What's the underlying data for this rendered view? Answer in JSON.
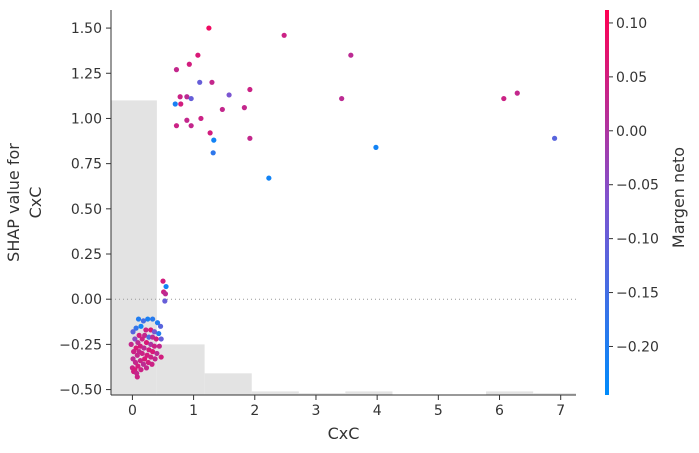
{
  "chart_data": {
    "type": "scatter",
    "xlabel": "CxC",
    "ylabel": "SHAP value for\nCxC",
    "colorbar_label": "Margen neto",
    "xlim": [
      -0.35,
      7.25
    ],
    "ylim": [
      -0.53,
      1.6
    ],
    "x_ticks": [
      0,
      1,
      2,
      3,
      4,
      5,
      6,
      7
    ],
    "y_ticks": [
      -0.5,
      -0.25,
      0.0,
      0.25,
      0.5,
      0.75,
      1.0,
      1.25,
      1.5
    ],
    "y_tick_labels": [
      "−0.50",
      "−0.25",
      "0.00",
      "0.25",
      "0.50",
      "0.75",
      "1.00",
      "1.25",
      "1.50"
    ],
    "colorbar": {
      "min": -0.245,
      "max": 0.112,
      "ticks": [
        0.1,
        0.05,
        0.0,
        -0.05,
        -0.1,
        -0.15,
        -0.2
      ],
      "tick_labels": [
        "0.10",
        "0.05",
        "0.00",
        "−0.05",
        "−0.10",
        "−0.15",
        "−0.20"
      ],
      "low_color": "#008bfb",
      "mid_color": "#7d54d0",
      "high_color": "#ff0052"
    },
    "histogram": {
      "color": "#e3e3e3",
      "bins": [
        {
          "x0": -0.35,
          "x1": 0.4,
          "height": 1.63
        },
        {
          "x0": 0.4,
          "x1": 1.18,
          "height": 0.28
        },
        {
          "x0": 1.18,
          "x1": 1.95,
          "height": 0.12
        },
        {
          "x0": 1.95,
          "x1": 2.72,
          "height": 0.02
        },
        {
          "x0": 2.72,
          "x1": 3.48,
          "height": 0.01
        },
        {
          "x0": 3.48,
          "x1": 4.25,
          "height": 0.02
        },
        {
          "x0": 4.25,
          "x1": 5.02,
          "height": 0.0
        },
        {
          "x0": 5.02,
          "x1": 5.78,
          "height": 0.0
        },
        {
          "x0": 5.78,
          "x1": 6.55,
          "height": 0.02
        },
        {
          "x0": 6.55,
          "x1": 7.25,
          "height": 0.01
        }
      ]
    },
    "points": [
      {
        "x": 1.25,
        "y": 1.5,
        "c": 0.09
      },
      {
        "x": 2.48,
        "y": 1.46,
        "c": 0.04
      },
      {
        "x": 3.57,
        "y": 1.35,
        "c": 0.02
      },
      {
        "x": 1.07,
        "y": 1.35,
        "c": 0.06
      },
      {
        "x": 0.93,
        "y": 1.3,
        "c": 0.05
      },
      {
        "x": 0.72,
        "y": 1.27,
        "c": 0.03
      },
      {
        "x": 1.1,
        "y": 1.2,
        "c": -0.1
      },
      {
        "x": 1.3,
        "y": 1.2,
        "c": 0.03
      },
      {
        "x": 1.92,
        "y": 1.16,
        "c": 0.04
      },
      {
        "x": 1.58,
        "y": 1.13,
        "c": -0.07
      },
      {
        "x": 0.78,
        "y": 1.12,
        "c": 0.04
      },
      {
        "x": 0.89,
        "y": 1.12,
        "c": 0.02
      },
      {
        "x": 0.96,
        "y": 1.11,
        "c": -0.1
      },
      {
        "x": 3.42,
        "y": 1.11,
        "c": 0.02
      },
      {
        "x": 6.07,
        "y": 1.11,
        "c": 0.04
      },
      {
        "x": 6.29,
        "y": 1.14,
        "c": 0.03
      },
      {
        "x": 0.7,
        "y": 1.08,
        "c": -0.21
      },
      {
        "x": 0.79,
        "y": 1.08,
        "c": 0.05
      },
      {
        "x": 1.47,
        "y": 1.05,
        "c": 0.03
      },
      {
        "x": 1.83,
        "y": 1.06,
        "c": 0.03
      },
      {
        "x": 1.12,
        "y": 1.0,
        "c": 0.04
      },
      {
        "x": 0.89,
        "y": 0.99,
        "c": 0.03
      },
      {
        "x": 0.72,
        "y": 0.96,
        "c": 0.04
      },
      {
        "x": 0.96,
        "y": 0.96,
        "c": 0.03
      },
      {
        "x": 1.27,
        "y": 0.92,
        "c": 0.05
      },
      {
        "x": 1.92,
        "y": 0.89,
        "c": 0.03
      },
      {
        "x": 1.33,
        "y": 0.88,
        "c": -0.22
      },
      {
        "x": 1.32,
        "y": 0.81,
        "c": -0.18
      },
      {
        "x": 3.98,
        "y": 0.84,
        "c": -0.22
      },
      {
        "x": 6.9,
        "y": 0.89,
        "c": -0.12
      },
      {
        "x": 2.23,
        "y": 0.67,
        "c": -0.22
      },
      {
        "x": 0.5,
        "y": 0.1,
        "c": 0.05
      },
      {
        "x": 0.55,
        "y": 0.07,
        "c": -0.22
      },
      {
        "x": 0.51,
        "y": 0.04,
        "c": 0.04
      },
      {
        "x": 0.54,
        "y": 0.03,
        "c": 0.02
      },
      {
        "x": 0.53,
        "y": -0.01,
        "c": -0.1
      },
      {
        "x": 0.1,
        "y": -0.11,
        "c": -0.2
      },
      {
        "x": 0.25,
        "y": -0.11,
        "c": -0.21
      },
      {
        "x": 0.33,
        "y": -0.11,
        "c": -0.19
      },
      {
        "x": 0.18,
        "y": -0.12,
        "c": -0.15
      },
      {
        "x": 0.41,
        "y": -0.13,
        "c": -0.2
      },
      {
        "x": 0.46,
        "y": -0.15,
        "c": -0.12
      },
      {
        "x": 0.06,
        "y": -0.16,
        "c": -0.17
      },
      {
        "x": 0.14,
        "y": -0.15,
        "c": -0.22
      },
      {
        "x": 0.22,
        "y": -0.17,
        "c": 0.04
      },
      {
        "x": 0.3,
        "y": -0.17,
        "c": 0.06
      },
      {
        "x": 0.01,
        "y": -0.18,
        "c": -0.12
      },
      {
        "x": 0.36,
        "y": -0.18,
        "c": -0.08
      },
      {
        "x": 0.43,
        "y": -0.19,
        "c": -0.2
      },
      {
        "x": 0.11,
        "y": -0.2,
        "c": 0.05
      },
      {
        "x": 0.2,
        "y": -0.2,
        "c": 0.03
      },
      {
        "x": 0.27,
        "y": -0.21,
        "c": -0.14
      },
      {
        "x": 0.33,
        "y": -0.21,
        "c": 0.02
      },
      {
        "x": 0.04,
        "y": -0.22,
        "c": -0.05
      },
      {
        "x": 0.16,
        "y": -0.22,
        "c": 0.04
      },
      {
        "x": 0.39,
        "y": -0.22,
        "c": 0.05
      },
      {
        "x": 0.47,
        "y": -0.22,
        "c": -0.1
      },
      {
        "x": 0.09,
        "y": -0.24,
        "c": 0.02
      },
      {
        "x": 0.23,
        "y": -0.24,
        "c": 0.06
      },
      {
        "x": 0.3,
        "y": -0.25,
        "c": 0.0
      },
      {
        "x": -0.02,
        "y": -0.25,
        "c": 0.03
      },
      {
        "x": 0.13,
        "y": -0.26,
        "c": 0.05
      },
      {
        "x": 0.36,
        "y": -0.26,
        "c": 0.04
      },
      {
        "x": 0.44,
        "y": -0.26,
        "c": 0.03
      },
      {
        "x": 0.06,
        "y": -0.27,
        "c": 0.06
      },
      {
        "x": 0.19,
        "y": -0.27,
        "c": 0.02
      },
      {
        "x": 0.27,
        "y": -0.28,
        "c": 0.05
      },
      {
        "x": 0.02,
        "y": -0.29,
        "c": 0.04
      },
      {
        "x": 0.11,
        "y": -0.29,
        "c": 0.03
      },
      {
        "x": 0.33,
        "y": -0.29,
        "c": 0.06
      },
      {
        "x": 0.4,
        "y": -0.3,
        "c": 0.02
      },
      {
        "x": 0.16,
        "y": -0.3,
        "c": 0.04
      },
      {
        "x": 0.24,
        "y": -0.31,
        "c": 0.05
      },
      {
        "x": 0.08,
        "y": -0.31,
        "c": 0.03
      },
      {
        "x": 0.3,
        "y": -0.32,
        "c": 0.04
      },
      {
        "x": 0.47,
        "y": -0.32,
        "c": 0.05
      },
      {
        "x": 0.01,
        "y": -0.33,
        "c": 0.02
      },
      {
        "x": 0.2,
        "y": -0.33,
        "c": 0.06
      },
      {
        "x": 0.37,
        "y": -0.33,
        "c": 0.03
      },
      {
        "x": 0.13,
        "y": -0.34,
        "c": 0.04
      },
      {
        "x": 0.26,
        "y": -0.35,
        "c": 0.05
      },
      {
        "x": 0.05,
        "y": -0.35,
        "c": 0.03
      },
      {
        "x": 0.32,
        "y": -0.36,
        "c": 0.04
      },
      {
        "x": 0.18,
        "y": -0.36,
        "c": 0.02
      },
      {
        "x": 0.09,
        "y": -0.37,
        "c": 0.05
      },
      {
        "x": 0.0,
        "y": -0.38,
        "c": 0.04
      },
      {
        "x": 0.23,
        "y": -0.38,
        "c": 0.03
      },
      {
        "x": 0.04,
        "y": -0.39,
        "c": 0.06
      },
      {
        "x": 0.14,
        "y": -0.39,
        "c": 0.04
      },
      {
        "x": 0.02,
        "y": -0.4,
        "c": 0.05
      },
      {
        "x": 0.07,
        "y": -0.41,
        "c": 0.03
      },
      {
        "x": 0.08,
        "y": -0.43,
        "c": 0.04
      }
    ]
  }
}
